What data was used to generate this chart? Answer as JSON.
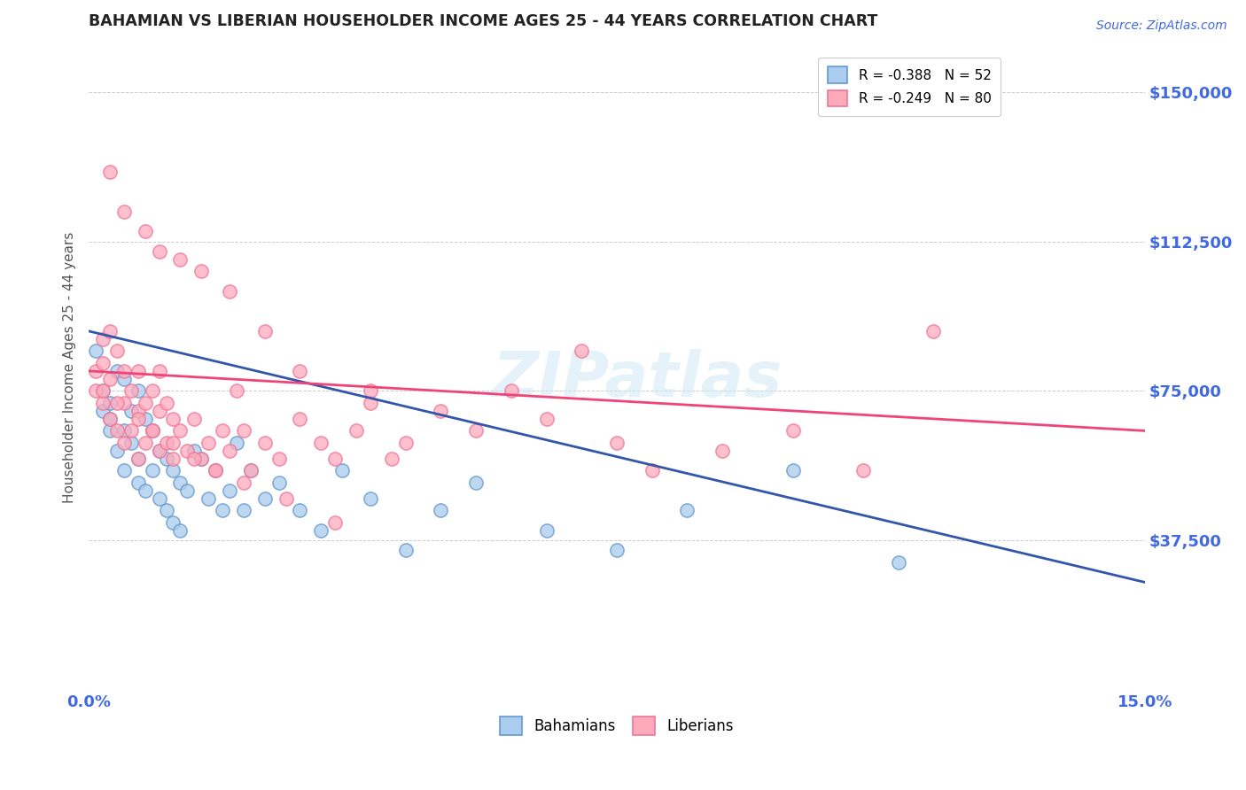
{
  "title": "BAHAMIAN VS LIBERIAN HOUSEHOLDER INCOME AGES 25 - 44 YEARS CORRELATION CHART",
  "source_text": "Source: ZipAtlas.com",
  "ylabel": "Householder Income Ages 25 - 44 years",
  "xlim": [
    0.0,
    0.15
  ],
  "ylim": [
    0,
    162000
  ],
  "yticks": [
    0,
    37500,
    75000,
    112500,
    150000
  ],
  "ytick_labels": [
    "",
    "$37,500",
    "$75,000",
    "$112,500",
    "$150,000"
  ],
  "xticks": [
    0.0,
    0.15
  ],
  "xtick_labels": [
    "0.0%",
    "15.0%"
  ],
  "background_color": "#ffffff",
  "grid_color": "#cccccc",
  "bahamian_color": "#aaccee",
  "liberian_color": "#ffaabb",
  "bahamian_edge_color": "#6699cc",
  "liberian_edge_color": "#ee7799",
  "bahamian_line_color": "#3355aa",
  "liberian_line_color": "#ee4477",
  "legend_r1": "R = -0.388",
  "legend_n1": "N = 52",
  "legend_r2": "R = -0.249",
  "legend_n2": "N = 80",
  "bahamian_label": "Bahamians",
  "liberian_label": "Liberians",
  "title_color": "#222222",
  "axis_label_color": "#555555",
  "ytick_color": "#4169E1",
  "xtick_color": "#4169E1",
  "watermark": "ZIPatlas",
  "bahamian_x": [
    0.001,
    0.002,
    0.002,
    0.003,
    0.003,
    0.003,
    0.004,
    0.004,
    0.005,
    0.005,
    0.005,
    0.006,
    0.006,
    0.007,
    0.007,
    0.007,
    0.008,
    0.008,
    0.009,
    0.009,
    0.01,
    0.01,
    0.011,
    0.011,
    0.012,
    0.012,
    0.013,
    0.013,
    0.014,
    0.015,
    0.016,
    0.017,
    0.018,
    0.019,
    0.02,
    0.021,
    0.022,
    0.023,
    0.025,
    0.027,
    0.03,
    0.033,
    0.036,
    0.04,
    0.045,
    0.05,
    0.055,
    0.065,
    0.075,
    0.085,
    0.1,
    0.115
  ],
  "bahamian_y": [
    85000,
    70000,
    75000,
    72000,
    68000,
    65000,
    80000,
    60000,
    78000,
    65000,
    55000,
    70000,
    62000,
    75000,
    58000,
    52000,
    68000,
    50000,
    65000,
    55000,
    60000,
    48000,
    58000,
    45000,
    55000,
    42000,
    52000,
    40000,
    50000,
    60000,
    58000,
    48000,
    55000,
    45000,
    50000,
    62000,
    45000,
    55000,
    48000,
    52000,
    45000,
    40000,
    55000,
    48000,
    35000,
    45000,
    52000,
    40000,
    35000,
    45000,
    55000,
    32000
  ],
  "liberian_x": [
    0.001,
    0.001,
    0.002,
    0.002,
    0.002,
    0.003,
    0.003,
    0.003,
    0.004,
    0.004,
    0.005,
    0.005,
    0.005,
    0.006,
    0.006,
    0.007,
    0.007,
    0.007,
    0.008,
    0.008,
    0.009,
    0.009,
    0.01,
    0.01,
    0.01,
    0.011,
    0.011,
    0.012,
    0.012,
    0.013,
    0.014,
    0.015,
    0.016,
    0.017,
    0.018,
    0.019,
    0.02,
    0.021,
    0.022,
    0.023,
    0.025,
    0.027,
    0.03,
    0.033,
    0.035,
    0.038,
    0.04,
    0.043,
    0.045,
    0.05,
    0.055,
    0.06,
    0.065,
    0.07,
    0.075,
    0.08,
    0.09,
    0.1,
    0.11,
    0.12,
    0.003,
    0.005,
    0.008,
    0.01,
    0.013,
    0.016,
    0.02,
    0.025,
    0.03,
    0.04,
    0.002,
    0.004,
    0.007,
    0.009,
    0.012,
    0.015,
    0.018,
    0.022,
    0.028,
    0.035
  ],
  "liberian_y": [
    80000,
    75000,
    88000,
    82000,
    72000,
    90000,
    78000,
    68000,
    85000,
    65000,
    80000,
    72000,
    62000,
    75000,
    65000,
    80000,
    70000,
    58000,
    72000,
    62000,
    75000,
    65000,
    80000,
    70000,
    60000,
    72000,
    62000,
    68000,
    58000,
    65000,
    60000,
    68000,
    58000,
    62000,
    55000,
    65000,
    60000,
    75000,
    65000,
    55000,
    62000,
    58000,
    68000,
    62000,
    58000,
    65000,
    72000,
    58000,
    62000,
    70000,
    65000,
    75000,
    68000,
    85000,
    62000,
    55000,
    60000,
    65000,
    55000,
    90000,
    130000,
    120000,
    115000,
    110000,
    108000,
    105000,
    100000,
    90000,
    80000,
    75000,
    75000,
    72000,
    68000,
    65000,
    62000,
    58000,
    55000,
    52000,
    48000,
    42000
  ]
}
